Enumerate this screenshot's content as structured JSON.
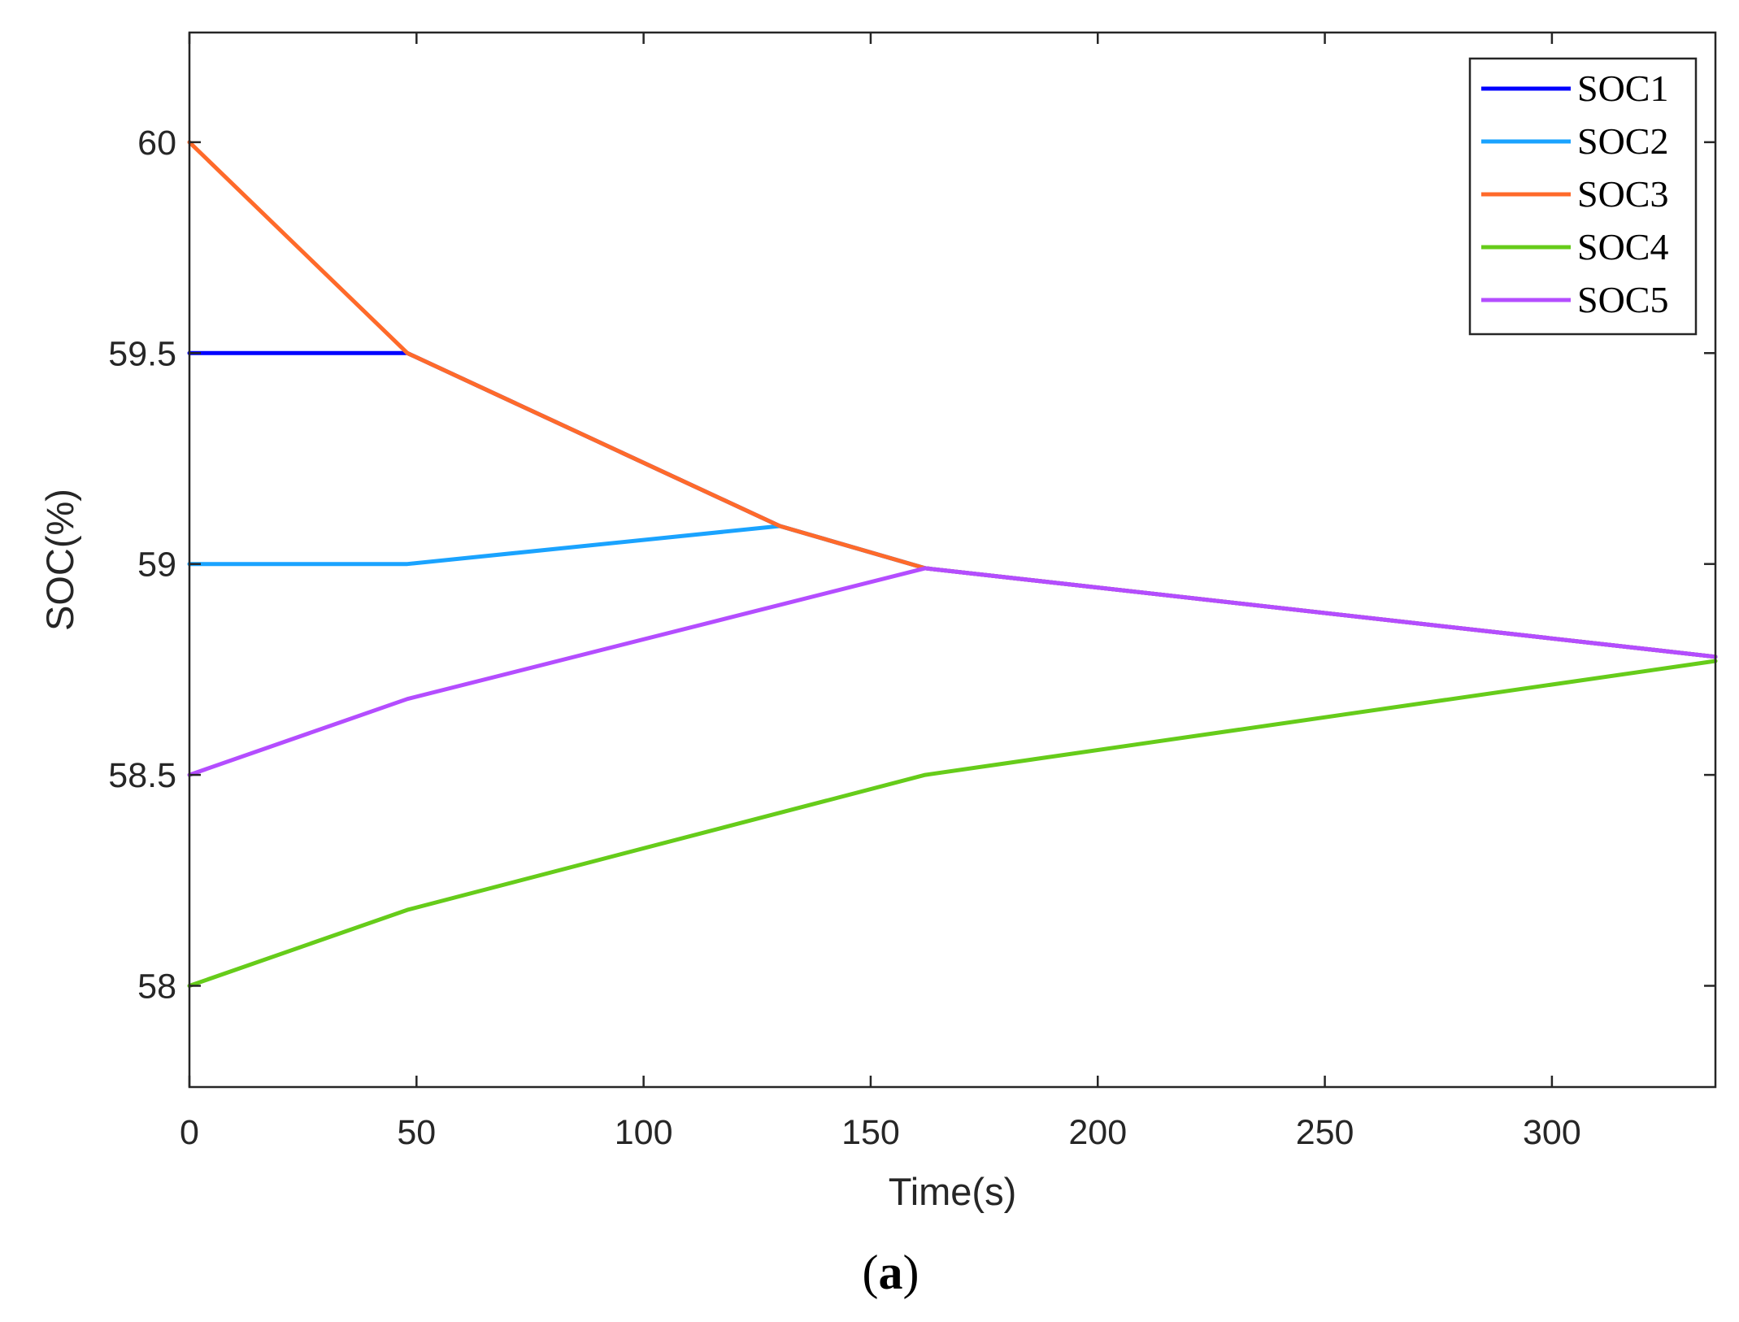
{
  "caption": {
    "open": "(",
    "letter": "a",
    "close": ")"
  },
  "chart_data": {
    "type": "line",
    "xlabel": "Time(s)",
    "ylabel": "SOC(%)",
    "xlim": [
      0,
      336
    ],
    "ylim": [
      57.76,
      60.26
    ],
    "xticks": [
      0,
      50,
      100,
      150,
      200,
      250,
      300
    ],
    "xtick_labels": [
      "0",
      "50",
      "100",
      "150",
      "200",
      "250",
      "300"
    ],
    "yticks": [
      58,
      58.5,
      59,
      59.5,
      60
    ],
    "ytick_labels": [
      "58",
      "58.5",
      "59",
      "59.5",
      "60"
    ],
    "grid": false,
    "legend_position": "top-right",
    "series": [
      {
        "name": "SOC1",
        "color": "#0000ff",
        "x": [
          0,
          48,
          130,
          162,
          336
        ],
        "y": [
          59.5,
          59.5,
          59.09,
          58.99,
          58.78
        ]
      },
      {
        "name": "SOC2",
        "color": "#1aa3ff",
        "x": [
          0,
          48,
          130,
          162,
          336
        ],
        "y": [
          59.0,
          59.0,
          59.09,
          58.99,
          58.78
        ]
      },
      {
        "name": "SOC3",
        "color": "#ff6a2a",
        "x": [
          0,
          48,
          130,
          162,
          336
        ],
        "y": [
          60.0,
          59.5,
          59.09,
          58.99,
          58.78
        ]
      },
      {
        "name": "SOC4",
        "color": "#66cc1a",
        "x": [
          0,
          48,
          162,
          336
        ],
        "y": [
          58.0,
          58.18,
          58.5,
          58.77
        ]
      },
      {
        "name": "SOC5",
        "color": "#b44dff",
        "x": [
          0,
          48,
          162,
          336
        ],
        "y": [
          58.5,
          58.68,
          58.99,
          58.78
        ]
      }
    ]
  }
}
